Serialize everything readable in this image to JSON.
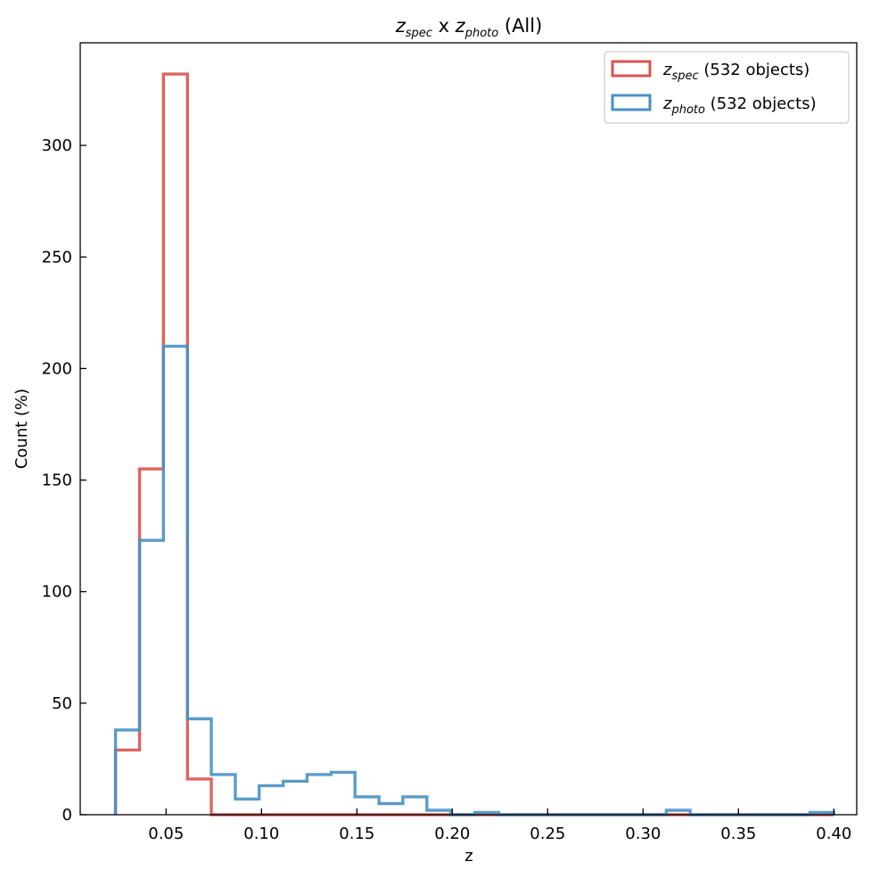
{
  "chart_data": {
    "type": "histogram",
    "title": {
      "spec_var": "z",
      "spec_sub": "spec",
      "mid": " x ",
      "photo_var": "z",
      "photo_sub": "photo",
      "suffix": " (All)"
    },
    "xlabel": "z",
    "ylabel": "Count (%)",
    "xlim": [
      0.005,
      0.412
    ],
    "ylim": [
      0,
      346
    ],
    "xticks": [
      0.05,
      0.1,
      0.15,
      0.2,
      0.25,
      0.3,
      0.35,
      0.4
    ],
    "xtick_labels": [
      "0.05",
      "0.10",
      "0.15",
      "0.20",
      "0.25",
      "0.30",
      "0.35",
      "0.40"
    ],
    "yticks": [
      0,
      50,
      100,
      150,
      200,
      250,
      300
    ],
    "ytick_labels": [
      "0",
      "50",
      "100",
      "150",
      "200",
      "250",
      "300"
    ],
    "bin_edges": [
      0.0235,
      0.0361,
      0.0486,
      0.0612,
      0.0737,
      0.0863,
      0.0988,
      0.1114,
      0.1239,
      0.1365,
      0.149,
      0.1616,
      0.1741,
      0.1867,
      0.1992,
      0.2118,
      0.2243,
      0.2369,
      0.2494,
      0.262,
      0.2745,
      0.2871,
      0.2996,
      0.3122,
      0.3247,
      0.3373,
      0.3498,
      0.3624,
      0.3749,
      0.3875,
      0.4
    ],
    "grid": false,
    "legend_position": "top-right",
    "series": [
      {
        "name_var": "z",
        "name_sub": "spec",
        "name_suffix": " (532 objects)",
        "color": "#d9534f",
        "counts": [
          29,
          155,
          332,
          16,
          0,
          0,
          0,
          0,
          0,
          0,
          0,
          0,
          0,
          0,
          0,
          0,
          0,
          0,
          0,
          0,
          0,
          0,
          0,
          0,
          0,
          0,
          0,
          0,
          0,
          0
        ]
      },
      {
        "name_var": "z",
        "name_sub": "photo",
        "name_suffix": " (532 objects)",
        "color": "#4a90c2",
        "counts": [
          38,
          123,
          210,
          43,
          18,
          7,
          13,
          15,
          18,
          19,
          8,
          5,
          8,
          2,
          0,
          1,
          0,
          0,
          0,
          0,
          0,
          0,
          0,
          2,
          0,
          0,
          0,
          0,
          0,
          1
        ]
      }
    ]
  }
}
